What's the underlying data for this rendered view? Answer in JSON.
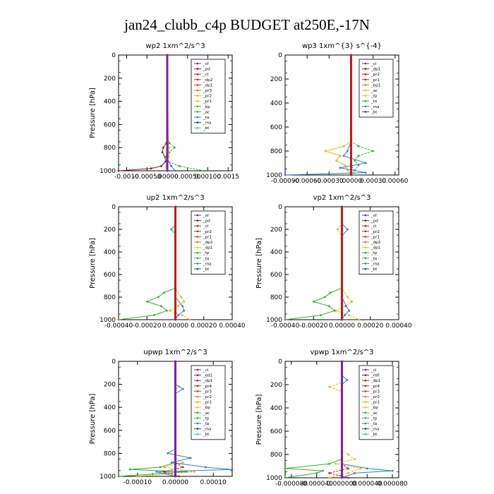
{
  "figure_title": "jan24_clubb_c4p  BUDGET at250E,-17N",
  "chart_data": [
    {
      "type": "line",
      "title": "wp2   1xm^2/s^3",
      "ylabel": "Pressure [hPa]",
      "ylim": [
        1000,
        0
      ],
      "yticks": [
        0,
        200,
        400,
        600,
        800,
        1000
      ],
      "xlim": [
        -0.0012,
        0.0016
      ],
      "xtick_labels": [
        "-0.0010",
        "-0.00050",
        ".00000",
        "0.00050",
        "0.00100",
        "0.0015"
      ],
      "xticks": [
        -0.001,
        -0.0005,
        0.0,
        0.0005,
        0.001,
        0.0015
      ],
      "legend": [
        "_sf",
        "_pd",
        "_cl",
        "_dp2",
        "_dp1",
        "_pr3",
        "_pr2",
        "_pr1",
        "_bp",
        "_ac",
        "_ta",
        "_ma",
        "_bt"
      ],
      "series": [
        {
          "name": "_pd",
          "color": "#9a1818",
          "pressure": [
            0,
            600,
            760,
            800,
            840,
            880,
            920,
            960,
            980,
            1000
          ],
          "values": [
            0,
            0,
            -2e-05,
            -0.0001,
            -0.00012,
            -6e-05,
            -4e-05,
            -0.00015,
            -0.0004,
            -0.0012
          ]
        },
        {
          "name": "_pr1",
          "color": "#2ab52a",
          "pressure": [
            0,
            700,
            760,
            800,
            840,
            880,
            920,
            960,
            1000
          ],
          "values": [
            0,
            0,
            5e-05,
            0.00018,
            5e-05,
            -5e-05,
            2e-05,
            0.0003,
            0.0009
          ]
        },
        {
          "name": "_ac",
          "color": "#2a7fd4",
          "pressure": [
            0,
            740,
            800,
            840,
            880,
            960,
            1000
          ],
          "values": [
            0,
            0,
            4e-05,
            2e-05,
            -3e-05,
            0.0001,
            0.0002
          ]
        },
        {
          "name": "_bt",
          "color": "#20c8d8",
          "pressure": [
            0,
            1000
          ],
          "values": [
            0,
            0
          ]
        },
        {
          "name": "_pr3",
          "color": "#f2b400",
          "pressure": [
            0,
            800,
            880,
            960,
            1000
          ],
          "values": [
            0,
            3e-05,
            4e-05,
            -2e-05,
            0.0
          ]
        },
        {
          "name": "_sf",
          "color": "#7a22a8",
          "pressure": [
            0,
            1000
          ],
          "values": [
            0,
            0
          ]
        }
      ]
    },
    {
      "type": "line",
      "title": "wp3   1xm^{3} s^{-4}",
      "ylabel": "",
      "ylim": [
        1000,
        0
      ],
      "yticks": [
        0,
        200,
        400,
        600,
        800,
        1000
      ],
      "xlim": [
        -0.0009,
        0.00065
      ],
      "xtick_labels": [
        "-0.00090",
        "-0.00060",
        "-0.00030",
        ".00000",
        "0.00030",
        "0.00060"
      ],
      "xticks": [
        -0.0009,
        -0.0006,
        -0.0003,
        0.0,
        0.0003,
        0.0006
      ],
      "legend": [
        "_cl",
        "_dp1",
        "_pr2",
        "_pr1",
        "_bp1",
        "_ac",
        "_tp",
        "_ta",
        "_ma",
        "_bt"
      ],
      "series": [
        {
          "name": "_pr1",
          "color": "#f2b400",
          "pressure": [
            0,
            720,
            760,
            800,
            840,
            880,
            920,
            960,
            1000
          ],
          "values": [
            0,
            0,
            -0.0001,
            -0.00035,
            -0.00015,
            -0.0002,
            -8e-05,
            -5e-05,
            0
          ]
        },
        {
          "name": "_ac",
          "color": "#2ab52a",
          "pressure": [
            0,
            720,
            760,
            800,
            840,
            880,
            920,
            960,
            1000
          ],
          "values": [
            0,
            0,
            0.0001,
            0.0003,
            0.0001,
            5e-05,
            0.0001,
            5e-05,
            0
          ]
        },
        {
          "name": "_tp",
          "color": "#2a7fd4",
          "pressure": [
            0,
            720,
            800,
            840,
            900,
            940,
            980,
            1000
          ],
          "values": [
            0,
            0,
            -5e-05,
            -0.0001,
            0.0002,
            -0.00015,
            0.0002,
            -0.0009
          ]
        },
        {
          "name": "_bt",
          "color": "#20c8d8",
          "pressure": [
            0,
            900,
            1000
          ],
          "values": [
            0,
            0,
            5e-05
          ]
        },
        {
          "name": "_cl",
          "color": "#c81818",
          "pressure": [
            0,
            1000
          ],
          "values": [
            0,
            0
          ]
        }
      ]
    },
    {
      "type": "line",
      "title": "up2   1xm^2/s^3",
      "ylabel": "Pressure [hPa]",
      "ylim": [
        1000,
        0
      ],
      "yticks": [
        0,
        200,
        400,
        600,
        800,
        1000
      ],
      "xlim": [
        -0.0004,
        0.0004
      ],
      "xtick_labels": [
        "-0.00040",
        "-0.00020",
        "0.00000",
        "0.00020",
        "0.00040"
      ],
      "xticks": [
        -0.0004,
        -0.0002,
        0.0,
        0.0002,
        0.0004
      ],
      "legend": [
        "_sf",
        "_pd",
        "_cl",
        "_pr2",
        "_pr1",
        "_dp2",
        "_dp1",
        "_tp",
        "_ta",
        "_ma",
        "_bt"
      ],
      "series": [
        {
          "name": "_dp1",
          "color": "#2ab52a",
          "pressure": [
            0,
            160,
            200,
            240,
            720,
            760,
            800,
            840,
            880,
            920,
            960,
            1000
          ],
          "values": [
            0,
            0,
            -3e-05,
            0,
            0,
            -8e-05,
            -0.00012,
            -0.0002,
            -0.0001,
            -6e-05,
            -0.00015,
            -0.0004
          ]
        },
        {
          "name": "_pr1",
          "color": "#f2b400",
          "pressure": [
            0,
            720,
            800,
            840,
            880,
            920,
            960,
            1000
          ],
          "values": [
            0,
            0,
            4e-05,
            6e-05,
            2e-05,
            -4e-05,
            5e-05,
            0.0001
          ]
        },
        {
          "name": "_tp",
          "color": "#2a7fd4",
          "pressure": [
            0,
            800,
            880,
            920,
            960,
            1000
          ],
          "values": [
            0,
            0,
            5e-05,
            6e-05,
            2e-05,
            0
          ]
        },
        {
          "name": "_cl",
          "color": "#c81818",
          "pressure": [
            0,
            1000
          ],
          "values": [
            0,
            0
          ]
        }
      ]
    },
    {
      "type": "line",
      "title": "vp2   1xm^2/s^3",
      "ylabel": "Pressure [hPa]",
      "ylim": [
        1000,
        0
      ],
      "yticks": [
        0,
        200,
        400,
        600,
        800,
        1000
      ],
      "xlim": [
        -0.0004,
        0.0004
      ],
      "xtick_labels": [
        "-0.00040",
        "-0.00020",
        "0.00000",
        "0.00020",
        "0.00040"
      ],
      "xticks": [
        -0.0004,
        -0.0002,
        0.0,
        0.0002,
        0.0004
      ],
      "legend": [
        "_sf",
        "_pd",
        "_cl",
        "_pr2",
        "_pr1",
        "_dp2",
        "_dp1",
        "_tp",
        "_ta",
        "_ma",
        "_bt"
      ],
      "series": [
        {
          "name": "_dp1",
          "color": "#2ab52a",
          "pressure": [
            0,
            720,
            760,
            800,
            840,
            880,
            920,
            960,
            1000
          ],
          "values": [
            0,
            0,
            -8e-05,
            -0.00012,
            -0.0002,
            -9e-05,
            -5e-05,
            -0.00015,
            -0.0004
          ]
        },
        {
          "name": "_pr1",
          "color": "#f2b400",
          "pressure": [
            0,
            150,
            200,
            260,
            720,
            800,
            840,
            880,
            920,
            960,
            1000
          ],
          "values": [
            0,
            0,
            -3e-05,
            0,
            0,
            4e-05,
            7e-05,
            2e-05,
            -4e-05,
            5e-05,
            0.00012
          ]
        },
        {
          "name": "_tp",
          "color": "#2a7fd4",
          "pressure": [
            0,
            150,
            200,
            260,
            800,
            880,
            920,
            960,
            1000
          ],
          "values": [
            0,
            0,
            4e-05,
            0,
            0,
            3e-05,
            5e-05,
            2e-05,
            0
          ]
        },
        {
          "name": "_cl",
          "color": "#c81818",
          "pressure": [
            0,
            1000
          ],
          "values": [
            0,
            0
          ]
        }
      ]
    },
    {
      "type": "line",
      "title": "upwp   1xm^2/s^3",
      "ylabel": "Pressure [hPa]",
      "ylim": [
        1000,
        0
      ],
      "yticks": [
        0,
        200,
        400,
        600,
        800,
        1000
      ],
      "xlim": [
        -0.00015,
        0.00015
      ],
      "xtick_labels": [
        "-0.00010",
        "0.00000",
        "0.00010"
      ],
      "xticks": [
        -0.0001,
        0.0,
        0.0001
      ],
      "legend": [
        "_cl",
        "_ed1",
        "_dp1",
        "_pr4",
        "_pr3",
        "_pr2",
        "_pr1",
        "_bp",
        "_ac",
        "_tp",
        "_ta",
        "_ma",
        "_bt"
      ],
      "series": [
        {
          "name": "_bp",
          "color": "#2ab52a",
          "pressure": [
            0,
            880,
            920,
            940,
            960,
            980,
            1000
          ],
          "values": [
            0,
            0,
            -4e-05,
            -0.00012,
            3e-05,
            -6e-05,
            -0.00015
          ]
        },
        {
          "name": "_pr1",
          "color": "#f2b400",
          "pressure": [
            0,
            200,
            220,
            240,
            840,
            880,
            920,
            960,
            1000
          ],
          "values": [
            0,
            0,
            1e-05,
            0,
            0,
            2e-05,
            -3e-05,
            5e-05,
            -0.0001
          ]
        },
        {
          "name": "_tp",
          "color": "#2a7fd4",
          "pressure": [
            0,
            200,
            240,
            280,
            760,
            800,
            840,
            880,
            920,
            940,
            960,
            1000
          ],
          "values": [
            0,
            0,
            2e-05,
            0,
            0,
            -2e-05,
            4e-05,
            -1e-05,
            8e-05,
            0.00015,
            -5e-05,
            0
          ]
        },
        {
          "name": "_dp1",
          "color": "#c81818",
          "pressure": [
            0,
            880,
            920,
            960,
            1000
          ],
          "values": [
            0,
            0,
            2e-05,
            -3e-05,
            1e-05
          ]
        },
        {
          "name": "_cl",
          "color": "#7a22a8",
          "pressure": [
            0,
            1000
          ],
          "values": [
            0,
            0
          ]
        }
      ]
    },
    {
      "type": "line",
      "title": "vpwp   1xm^2/s^3",
      "ylabel": "Pressure [hPa]",
      "ylim": [
        1000,
        0
      ],
      "yticks": [
        0,
        200,
        400,
        600,
        800,
        1000
      ],
      "xlim": [
        -9e-05,
        9e-05
      ],
      "xtick_labels": [
        "-0.000080",
        "-0.000040",
        "0.000000",
        "0.000040",
        "0.000080"
      ],
      "xticks": [
        -8e-05,
        -4e-05,
        0.0,
        4e-05,
        8e-05
      ],
      "legend": [
        "_cl",
        "_mfl",
        "_dp1",
        "_pr4",
        "_pr3",
        "_pr2",
        "_pr1",
        "_bp",
        "_ac",
        "_tp",
        "_ta",
        "_ma",
        "_bt"
      ],
      "series": [
        {
          "name": "_bp",
          "color": "#2ab52a",
          "pressure": [
            0,
            840,
            880,
            920,
            940,
            960,
            1000
          ],
          "values": [
            0,
            0,
            -2e-05,
            -9e-05,
            -3e-05,
            -4e-05,
            -9e-05
          ]
        },
        {
          "name": "_pr1",
          "color": "#f2b400",
          "pressure": [
            0,
            180,
            220,
            260,
            760,
            800,
            840,
            880,
            920,
            960,
            1000
          ],
          "values": [
            0,
            0,
            -2e-05,
            0,
            0,
            1e-05,
            2e-05,
            -1e-05,
            3e-05,
            1e-05,
            -2e-05
          ]
        },
        {
          "name": "_tp",
          "color": "#2a7fd4",
          "pressure": [
            0,
            120,
            160,
            200,
            880,
            920,
            940,
            960,
            1000
          ],
          "values": [
            0,
            0,
            8e-06,
            0,
            0,
            4e-05,
            8e-05,
            2e-05,
            0
          ]
        },
        {
          "name": "_dp1",
          "color": "#c81818",
          "pressure": [
            0,
            880,
            920,
            960,
            1000
          ],
          "values": [
            0,
            0,
            1e-05,
            -2e-05,
            1e-05
          ]
        },
        {
          "name": "_cl",
          "color": "#7a22a8",
          "pressure": [
            0,
            1000
          ],
          "values": [
            0,
            0
          ]
        }
      ]
    }
  ]
}
